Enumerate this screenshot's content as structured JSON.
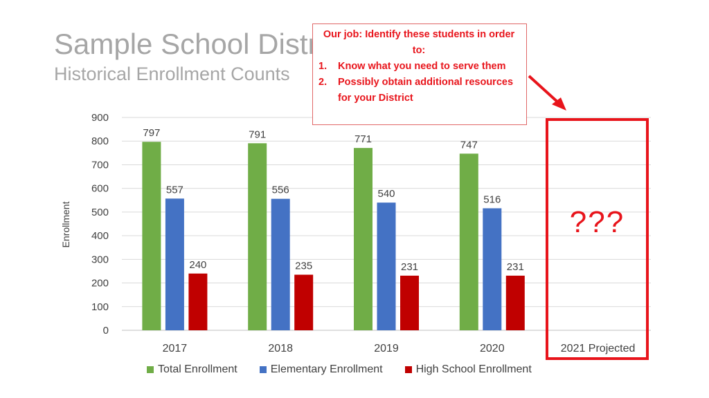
{
  "slide": {
    "title": "Sample School District",
    "subtitle": "Historical Enrollment Counts"
  },
  "callout": {
    "title": "Our job: Identify these students in order to:",
    "items": [
      {
        "number": "1.",
        "text": "Know what you need to serve them"
      },
      {
        "number": "2.",
        "text": "Possibly obtain additional resources for your District"
      }
    ]
  },
  "projection": {
    "category": "2021 Projected",
    "marker": "???"
  },
  "colors": {
    "total": "#70ad47",
    "elementary": "#4472c4",
    "high_school": "#c00000",
    "highlight": "#e8141b"
  },
  "chart_data": {
    "type": "bar",
    "categories": [
      "2017",
      "2018",
      "2019",
      "2020",
      "2021 Projected"
    ],
    "series": [
      {
        "name": "Total Enrollment",
        "values": [
          797,
          791,
          771,
          747,
          null
        ]
      },
      {
        "name": "Elementary Enrollment",
        "values": [
          557,
          556,
          540,
          516,
          null
        ]
      },
      {
        "name": "High School Enrollment",
        "values": [
          240,
          235,
          231,
          231,
          null
        ]
      }
    ],
    "ylabel": "Enrollment",
    "ylim": [
      0,
      900
    ],
    "yticks": [
      0,
      100,
      200,
      300,
      400,
      500,
      600,
      700,
      800,
      900
    ],
    "grid": true,
    "legend": "bottom"
  }
}
